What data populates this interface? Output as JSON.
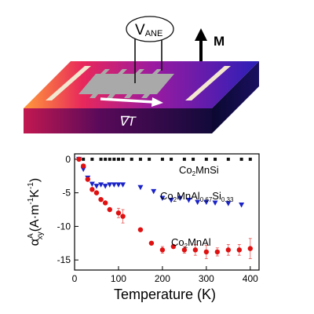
{
  "schematic": {
    "voltage_label": "V",
    "voltage_subscript": "ANE",
    "magnetization_label": "M",
    "gradient_label": "∇T"
  },
  "chart_data": {
    "type": "scatter",
    "xlabel": "Temperature (K)",
    "ylabel_main": "α",
    "ylabel_sup": "A",
    "ylabel_sub": "xy",
    "ylabel_units": "(A·m",
    "ylabel_units_sup1": "-1",
    "ylabel_units_mid": "K",
    "ylabel_units_sup2": "-1",
    "ylabel_units_end": ")",
    "xlim": [
      0,
      420
    ],
    "ylim": [
      -16.5,
      0.8
    ],
    "xticks": [
      0,
      100,
      200,
      300,
      400
    ],
    "yticks": [
      0,
      -5,
      -10,
      -15
    ],
    "series": [
      {
        "name": "Co2MnSi",
        "label_parts": [
          "Co",
          "2",
          "MnSi"
        ],
        "color": "#111111",
        "marker": "square",
        "x": [
          10,
          20,
          40,
          60,
          70,
          80,
          90,
          100,
          110,
          130,
          150,
          170,
          200,
          220,
          250,
          270,
          300,
          320,
          350,
          380,
          400
        ],
        "y": [
          0,
          0,
          0,
          0,
          0,
          0,
          0,
          0,
          0,
          0,
          0,
          0,
          0,
          0,
          0,
          0,
          0,
          0,
          0,
          0,
          0
        ]
      },
      {
        "name": "Co2MnAl0.67Si0.33",
        "label_parts": [
          "Co",
          "2",
          "MnAl",
          "0.67",
          "Si",
          "0.33"
        ],
        "color": "#1a23c8",
        "marker": "triangle-down",
        "x": [
          10,
          20,
          30,
          40,
          50,
          60,
          70,
          80,
          90,
          100,
          110,
          150,
          180,
          200,
          220,
          240,
          260,
          280,
          300,
          320,
          350,
          380
        ],
        "y": [
          0,
          -1.5,
          -2.8,
          -3.7,
          -4.0,
          -3.8,
          -4.0,
          -3.8,
          -3.8,
          -3.8,
          -3.8,
          -4.2,
          -4.8,
          -5.8,
          -6.1,
          -5.8,
          -6.1,
          -6.4,
          -6.4,
          -6.5,
          -6.6,
          -6.8
        ]
      },
      {
        "name": "Co2MnAl",
        "label_parts": [
          "Co",
          "2",
          "MnAl"
        ],
        "color": "#e01010",
        "marker": "circle",
        "x": [
          10,
          20,
          30,
          40,
          50,
          60,
          70,
          80,
          100,
          110,
          150,
          175,
          200,
          225,
          250,
          275,
          300,
          325,
          350,
          375,
          400
        ],
        "y": [
          0,
          -1.0,
          -3.0,
          -4.5,
          -5.0,
          -6.0,
          -6.5,
          -7.5,
          -8.0,
          -8.5,
          -10.5,
          -12.5,
          -13.5,
          -13.0,
          -13.5,
          -13.5,
          -13.8,
          -13.8,
          -13.5,
          -13.5,
          -13.3
        ],
        "err": [
          0,
          0,
          0,
          0,
          0,
          0,
          0,
          0,
          0.7,
          1.0,
          0,
          0,
          0.5,
          0,
          0.5,
          0.8,
          1.0,
          0.6,
          0.8,
          0.8,
          1.5
        ]
      }
    ]
  }
}
